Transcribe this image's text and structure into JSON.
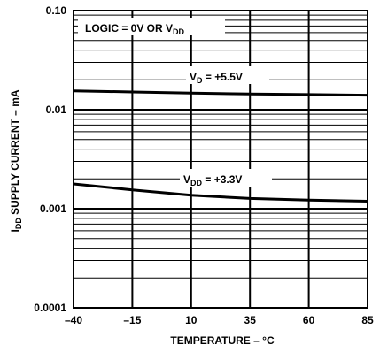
{
  "chart_data": {
    "type": "line",
    "xlabel": "TEMPERATURE – °C",
    "ylabel": "I_DD SUPPLY CURRENT – mA",
    "ylabel_main": "I",
    "ylabel_sub": "DD",
    "ylabel_rest": " SUPPLY CURRENT – mA",
    "x_scale": "linear",
    "y_scale": "log",
    "xlim": [
      -40,
      85
    ],
    "ylim": [
      0.0001,
      0.1
    ],
    "x_ticks": [
      -40,
      -15,
      10,
      35,
      60,
      85
    ],
    "x_tick_labels": [
      "–40",
      "–15",
      "10",
      "35",
      "60",
      "85"
    ],
    "y_ticks": [
      0.0001,
      0.001,
      0.01,
      0.1
    ],
    "y_tick_labels": [
      "0.0001",
      "0.001",
      "0.01",
      "0.10"
    ],
    "grid": true,
    "annotation_box": {
      "text_main": "LOGIC = 0V OR V",
      "text_sub": "DD"
    },
    "series": [
      {
        "label_main": "V",
        "label_sub": "D",
        "label_rest": " = +5.5V",
        "x": [
          -40,
          -15,
          10,
          35,
          60,
          85
        ],
        "values": [
          0.0155,
          0.0151,
          0.0147,
          0.0144,
          0.0142,
          0.014
        ]
      },
      {
        "label_main": "V",
        "label_sub": "DD",
        "label_rest": " = +3.3V",
        "x": [
          -40,
          -15,
          10,
          35,
          60,
          85
        ],
        "values": [
          0.00178,
          0.00155,
          0.00137,
          0.00127,
          0.00122,
          0.00119
        ]
      }
    ]
  }
}
